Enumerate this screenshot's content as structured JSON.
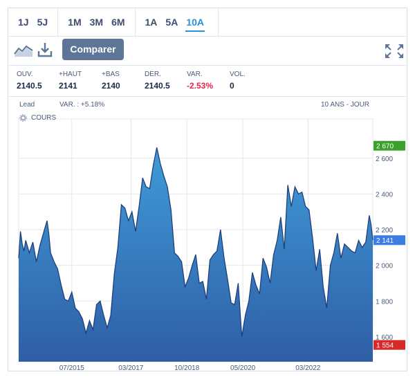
{
  "periods": [
    {
      "group": 1,
      "label": "1J"
    },
    {
      "group": 1,
      "label": "5J"
    },
    {
      "group": 2,
      "label": "1M"
    },
    {
      "group": 2,
      "label": "3M"
    },
    {
      "group": 2,
      "label": "6M"
    },
    {
      "group": 3,
      "label": "1A"
    },
    {
      "group": 3,
      "label": "5A"
    },
    {
      "group": 3,
      "label": "10A",
      "active": true
    }
  ],
  "toolbar": {
    "chart_type_icon": "area-chart-icon",
    "download_icon": "download-icon",
    "compare_label": "Comparer",
    "fullscreen_icon": "expand-icon"
  },
  "stats": [
    {
      "label": "OUV.",
      "value": "2140.5"
    },
    {
      "label": "+HAUT",
      "value": "2141"
    },
    {
      "label": "+BAS",
      "value": "2140"
    },
    {
      "label": "DER.",
      "value": "2140.5"
    },
    {
      "label": "VAR.",
      "value": "-2.53%",
      "negative": true
    },
    {
      "label": "VOL.",
      "value": "0"
    }
  ],
  "chart_header": {
    "instrument": "Lead",
    "variation": "VAR. : +5.18%",
    "range": "10 ANS - JOUR",
    "legend_label": "COURS"
  },
  "colors": {
    "area_top": "#3f9bd8",
    "area_bottom": "#2f5ea6",
    "line": "#1f3f7a",
    "max_badge": "#3aa12b",
    "last_badge": "#3b7de3",
    "min_badge": "#d62a2a",
    "active_tab": "#2a8fd9"
  },
  "chart_data": {
    "type": "area",
    "title": "",
    "xlabel": "",
    "ylabel": "",
    "ylim": [
      1460,
      2820
    ],
    "y_ticks": [
      "1 600",
      "1 800",
      "2 000",
      "2 200",
      "2 400",
      "2 600"
    ],
    "y_tick_values": [
      1600,
      1800,
      2000,
      2200,
      2400,
      2600
    ],
    "x_ticks": [
      "07/2015",
      "03/2017",
      "10/2018",
      "05/2020",
      "03/2022"
    ],
    "x_tick_values": [
      2015.5,
      2017.17,
      2018.75,
      2020.33,
      2022.17
    ],
    "xlim": [
      2014.0,
      2024.0
    ],
    "badges": {
      "max": "2 670",
      "max_value": 2670,
      "last": "2 141",
      "last_value": 2141,
      "min": "1 554",
      "min_value": 1554
    },
    "series": [
      {
        "x": [
          2014.0,
          2014.05,
          2014.1,
          2014.15,
          2014.2,
          2014.3,
          2014.4,
          2014.5,
          2014.6,
          2014.7,
          2014.8,
          2014.85,
          2014.9,
          2015.0,
          2015.1,
          2015.2,
          2015.3,
          2015.4,
          2015.5,
          2015.6,
          2015.7,
          2015.8,
          2015.9,
          2016.0,
          2016.1,
          2016.2,
          2016.3,
          2016.4,
          2016.5,
          2016.6,
          2016.7,
          2016.8,
          2016.9,
          2017.0,
          2017.1,
          2017.2,
          2017.3,
          2017.4,
          2017.5,
          2017.6,
          2017.7,
          2017.8,
          2017.9,
          2018.0,
          2018.1,
          2018.2,
          2018.3,
          2018.4,
          2018.5,
          2018.6,
          2018.7,
          2018.8,
          2018.9,
          2019.0,
          2019.1,
          2019.2,
          2019.3,
          2019.4,
          2019.5,
          2019.6,
          2019.7,
          2019.8,
          2019.9,
          2020.0,
          2020.1,
          2020.2,
          2020.3,
          2020.4,
          2020.5,
          2020.6,
          2020.7,
          2020.8,
          2020.9,
          2021.0,
          2021.1,
          2021.2,
          2021.3,
          2021.4,
          2021.5,
          2021.6,
          2021.7,
          2021.8,
          2021.9,
          2022.0,
          2022.1,
          2022.2,
          2022.3,
          2022.4,
          2022.5,
          2022.6,
          2022.7,
          2022.8,
          2022.9,
          2023.0,
          2023.1,
          2023.2,
          2023.3,
          2023.4,
          2023.5,
          2023.6,
          2023.7,
          2023.8,
          2023.9,
          2023.95,
          2024.0
        ],
        "y": [
          2040,
          2190,
          2120,
          2080,
          2140,
          2070,
          2130,
          2020,
          2110,
          2180,
          2250,
          2180,
          2070,
          2020,
          1980,
          1890,
          1810,
          1800,
          1850,
          1760,
          1740,
          1700,
          1620,
          1690,
          1640,
          1780,
          1800,
          1720,
          1650,
          1720,
          1950,
          2100,
          2340,
          2320,
          2250,
          2300,
          2190,
          2330,
          2490,
          2440,
          2430,
          2560,
          2660,
          2570,
          2500,
          2440,
          2310,
          2070,
          2050,
          2020,
          1880,
          1930,
          2000,
          2060,
          1900,
          1910,
          1810,
          2030,
          2060,
          2080,
          2200,
          2040,
          1920,
          1790,
          1780,
          1900,
          1600,
          1720,
          1800,
          1960,
          1890,
          1840,
          2040,
          1990,
          1900,
          2060,
          2140,
          2270,
          2090,
          2450,
          2330,
          2440,
          2400,
          2410,
          2330,
          2310,
          2150,
          1970,
          2090,
          1880,
          1760,
          2000,
          2070,
          2180,
          2040,
          2120,
          2100,
          2080,
          2070,
          2140,
          2100,
          2130,
          2280,
          2230,
          2141
        ]
      }
    ]
  }
}
